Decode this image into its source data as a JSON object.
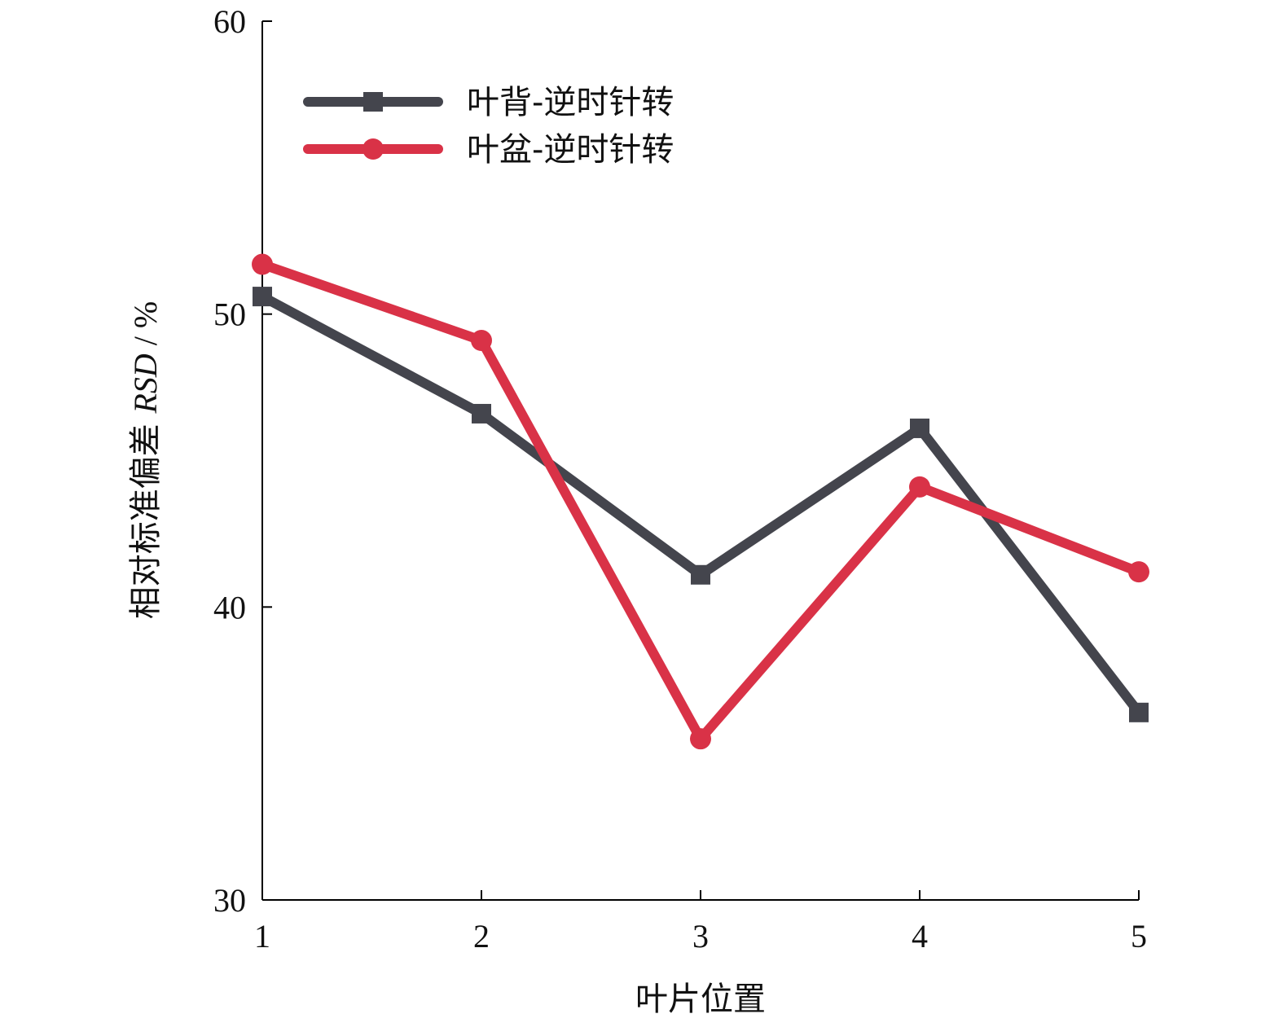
{
  "chart_data": {
    "type": "line",
    "title": "",
    "xlabel": "叶片位置",
    "ylabel": "相对标准偏差 RSD / %",
    "ylabel_parts": {
      "prefix": "相对标准偏差 ",
      "italic": "RSD",
      "suffix": " / %"
    },
    "x": [
      1,
      2,
      3,
      4,
      5
    ],
    "xlim": [
      1,
      5
    ],
    "ylim": [
      30,
      60
    ],
    "x_ticks": [
      "1",
      "2",
      "3",
      "4",
      "5"
    ],
    "y_ticks": [
      "30",
      "40",
      "50",
      "60"
    ],
    "grid": false,
    "legend_position": "top-left",
    "series": [
      {
        "name": "叶背-逆时针转",
        "values": [
          50.6,
          46.6,
          41.1,
          46.1,
          36.4
        ],
        "color": "#44454d",
        "marker": "square"
      },
      {
        "name": "叶盆-逆时针转",
        "values": [
          51.7,
          49.1,
          35.5,
          44.1,
          41.2
        ],
        "color": "#d93247",
        "marker": "circle"
      }
    ]
  }
}
